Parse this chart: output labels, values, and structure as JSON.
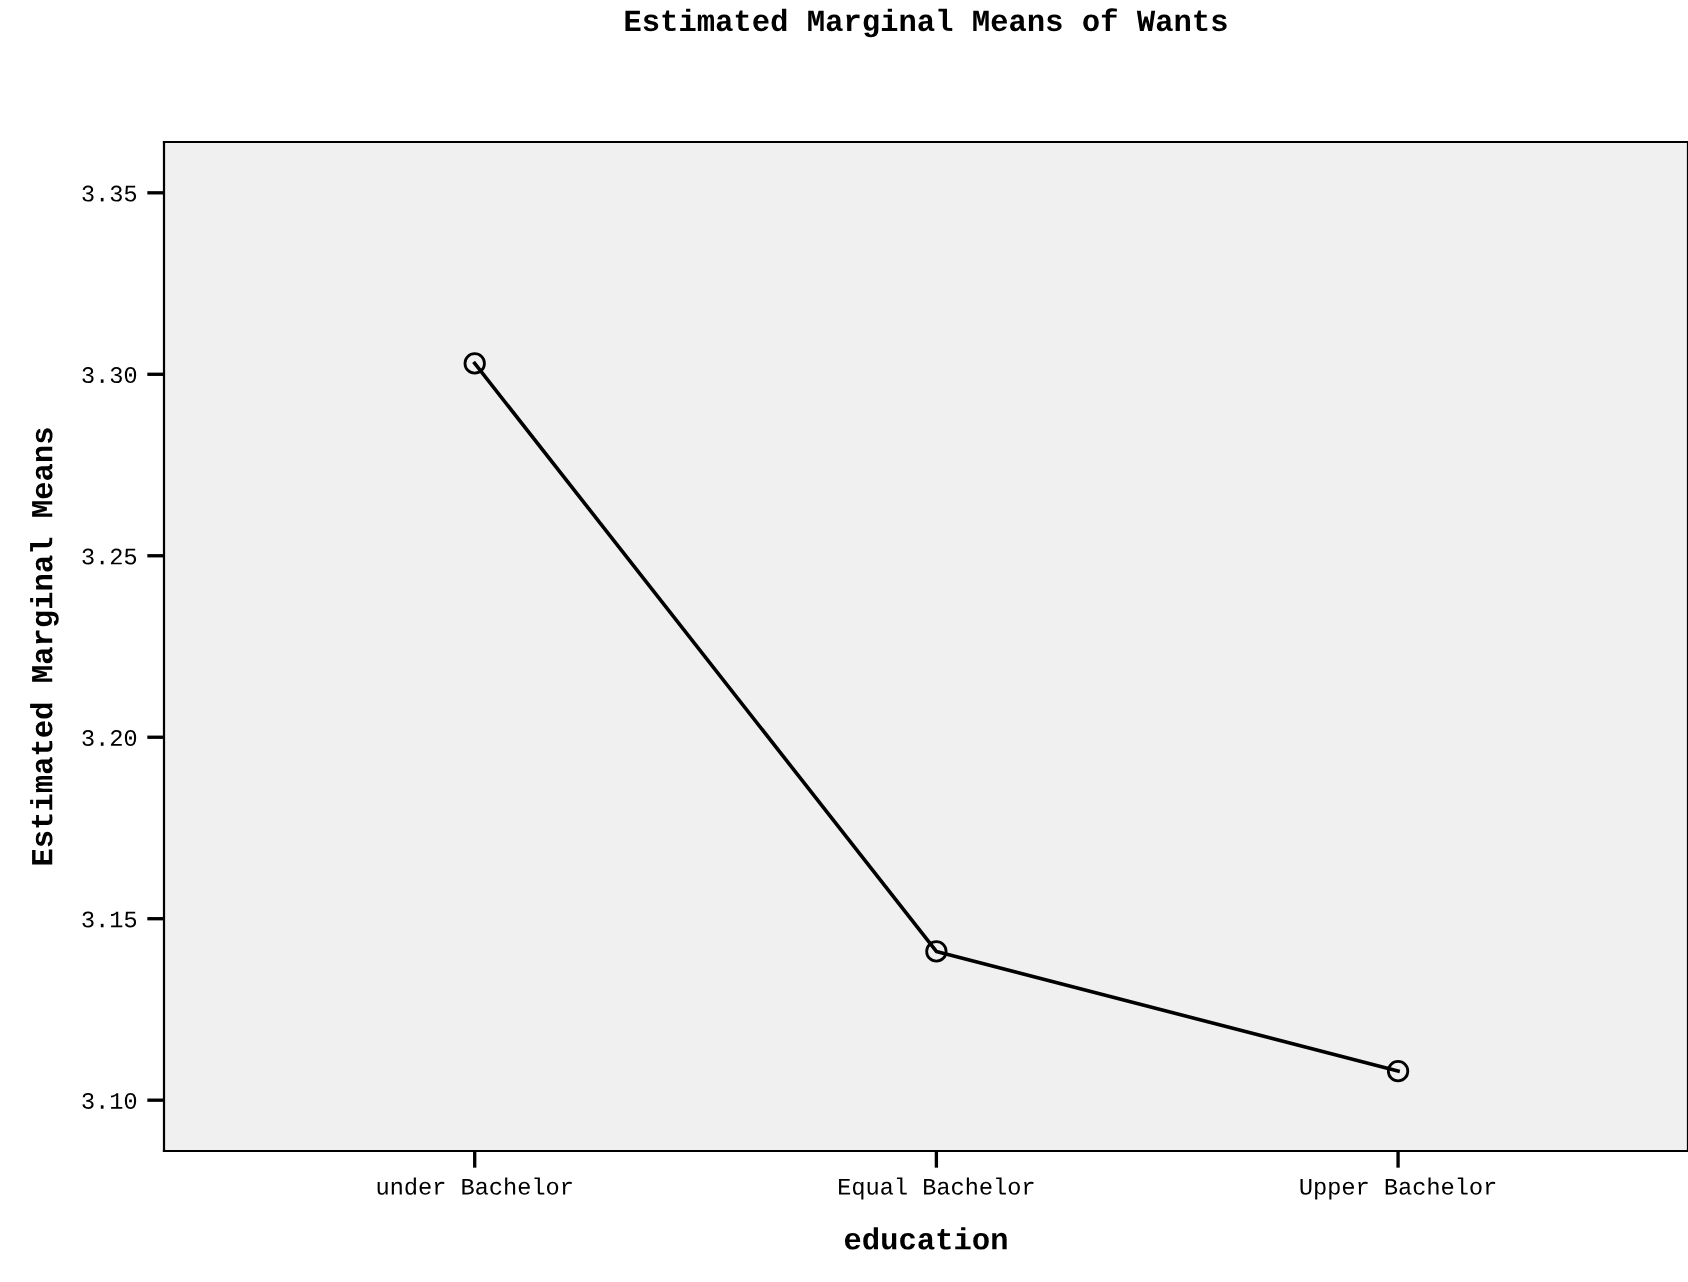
{
  "chart_data": {
    "type": "line",
    "title": "Estimated Marginal Means of Wants",
    "xlabel": "education",
    "ylabel": "Estimated Marginal Means",
    "categories": [
      "under Bachelor",
      "Equal Bachelor",
      "Upper Bachelor"
    ],
    "series": [
      {
        "color": "#000000",
        "values": [
          3.303,
          3.141,
          3.108
        ]
      }
    ],
    "ylim": [
      3.086,
      3.364
    ],
    "yticks": [
      {
        "value": 3.1,
        "label": "3.10"
      },
      {
        "value": 3.15,
        "label": "3.15"
      },
      {
        "value": 3.2,
        "label": "3.20"
      },
      {
        "value": 3.25,
        "label": "3.25"
      },
      {
        "value": 3.3,
        "label": "3.30"
      },
      {
        "value": 3.35,
        "label": "3.35"
      }
    ],
    "marker": "circle",
    "line_style": "solid"
  }
}
